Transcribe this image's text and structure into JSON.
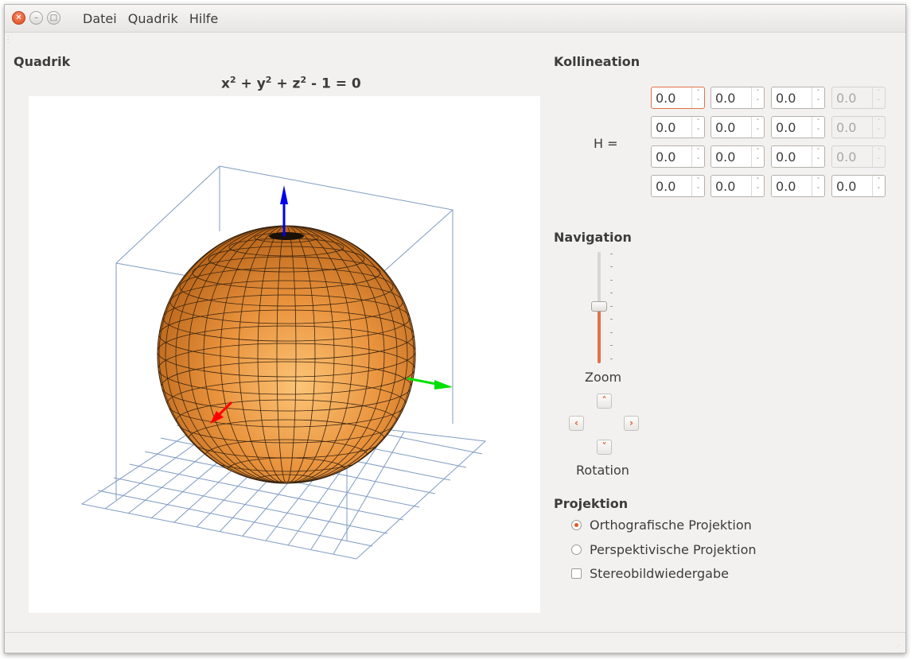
{
  "menu": [
    "Datei",
    "Quadrik",
    "Hilfe"
  ],
  "quadric": {
    "section_title": "Quadrik",
    "formula_parts": [
      "x",
      "2",
      " + y",
      "2",
      " + z",
      "2",
      " - 1 = 0"
    ]
  },
  "collineation": {
    "section_title": "Kollineation",
    "matrix_label": "H =",
    "rows": [
      [
        "0.0",
        "0.0",
        "0.0",
        "0.0"
      ],
      [
        "0.0",
        "0.0",
        "0.0",
        "0.0"
      ],
      [
        "0.0",
        "0.0",
        "0.0",
        "0.0"
      ],
      [
        "0.0",
        "0.0",
        "0.0",
        "0.0"
      ]
    ]
  },
  "navigation": {
    "section_title": "Navigation",
    "zoom_label": "Zoom",
    "zoom_level": 0.49,
    "rotation_label": "Rotation"
  },
  "projection": {
    "section_title": "Projektion",
    "orthographic_label": "Orthografische Projektion",
    "perspective_label": "Perspektivische Projektion",
    "stereo_label": "Stereobildwiedergabe",
    "selected": "orthographic",
    "stereo_checked": false
  },
  "colors": {
    "accent": "#e05a25",
    "sphere_light": "#fbbd6a",
    "sphere_dark": "#9c4c0c",
    "axis_x": "#ff0000",
    "axis_y": "#00e000",
    "axis_z": "#0000ee",
    "box_lines": "#6a88b0"
  },
  "icons": {
    "close": "close-icon",
    "minimize": "minimize-icon",
    "maximize": "maximize-icon",
    "up": "chevron-up-icon",
    "down": "chevron-down-icon",
    "left": "chevron-left-icon",
    "right": "chevron-right-icon"
  }
}
